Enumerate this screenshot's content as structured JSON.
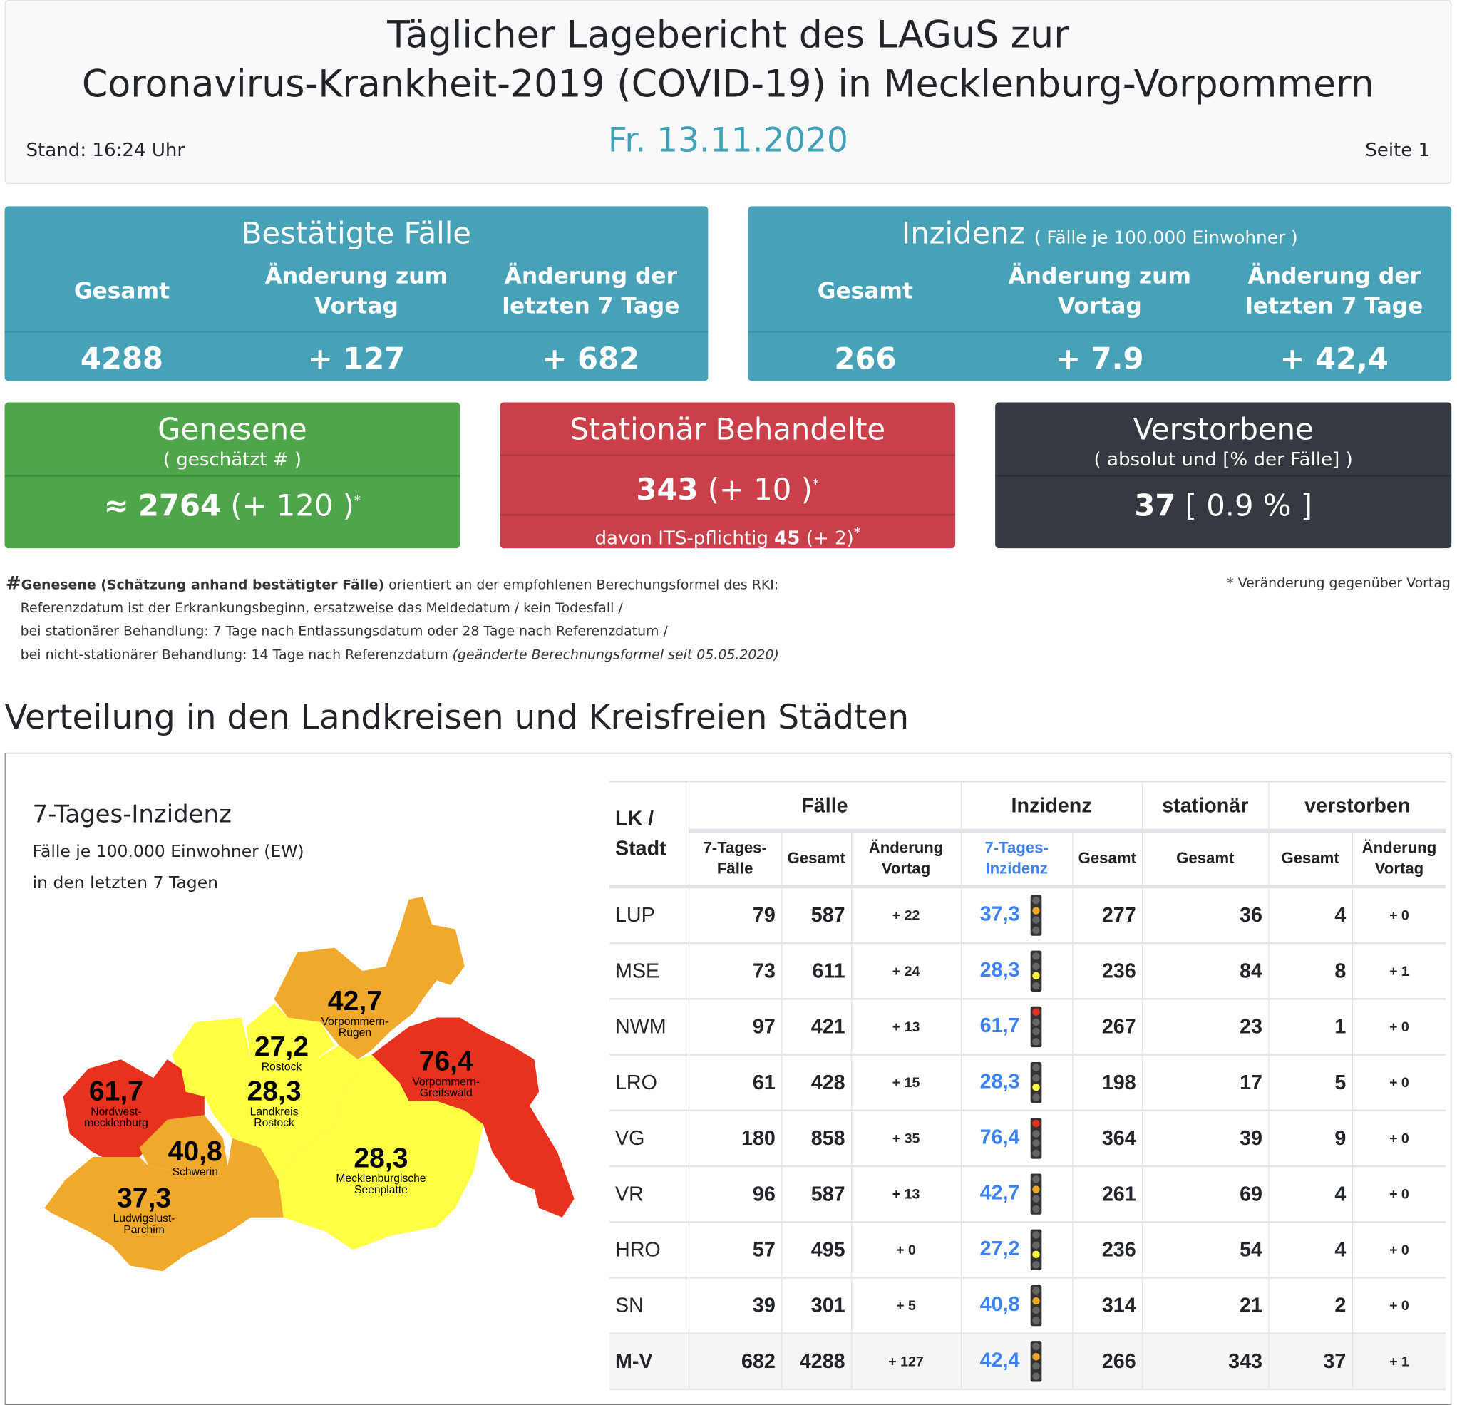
{
  "header": {
    "title_line1": "Täglicher Lagebericht des LAGuS zur",
    "title_line2": "Coronavirus-Krankheit-2019 (COVID-19) in Mecklenburg-Vorpommern",
    "date": "Fr. 13.11.2020",
    "stand": "Stand: 16:24 Uhr",
    "page": "Seite 1"
  },
  "confirmed": {
    "title": "Bestätigte Fälle",
    "h1": "Gesamt",
    "h2": "Änderung zum Vortag",
    "h3": "Änderung der letzten 7 Tage",
    "v1": "4288",
    "v2": "+ 127",
    "v3": "+ 682"
  },
  "incidence": {
    "title": "Inzidenz",
    "subtitle": "( Fälle je 100.000 Einwohner )",
    "h1": "Gesamt",
    "h2": "Änderung zum Vortag",
    "h3": "Änderung der letzten 7 Tage",
    "v1": "266",
    "v2": "+ 7.9",
    "v3": "+ 42,4"
  },
  "recovered": {
    "title": "Genesene",
    "subtitle": "( geschätzt # )",
    "approx": "≈",
    "value": "2764",
    "change": "(+ 120 )",
    "star": "*"
  },
  "hospital": {
    "title": "Stationär Behandelte",
    "value": "343",
    "change": "(+ 10 )",
    "star": "*",
    "its_label": "davon ITS-pflichtig",
    "its_value": "45",
    "its_change": "(+ 2)"
  },
  "deaths": {
    "title": "Verstorbene",
    "subtitle": "( absolut und [% der Fälle] )",
    "value": "37",
    "pct": "[ 0.9 % ]"
  },
  "notes": {
    "hash": "#",
    "bold": "Genesene (Schätzung anhand bestätigter Fälle)",
    "line1": " orientiert an der empfohlenen Berechungsformel des RKI:",
    "line2": "Referenzdatum ist der Erkrankungsbeginn, ersatzweise das Meldedatum / kein Todesfall /",
    "line3": "bei stationärer Behandlung: 7 Tage nach Entlassungsdatum oder 28 Tage nach Referenzdatum /",
    "line4": "bei nicht-stationärer Behandlung: 14 Tage nach Referenzdatum ",
    "line4_italic": "(geänderte Berechnungsformel seit 05.05.2020)",
    "star_note": "* Veränderung gegenüber Vortag"
  },
  "section_title": "Verteilung in den Landkreisen und Kreisfreien Städten",
  "map": {
    "title": "7-Tages-Inzidenz",
    "sub1": "Fälle je 100.000 Einwohner (EW)",
    "sub2": "in den letzten 7 Tagen",
    "regions": [
      {
        "value": "42,7",
        "name": "Vorpommern-Rügen",
        "color": "#f0a92b"
      },
      {
        "value": "27,2",
        "name": "Rostock",
        "color": "#ffff44"
      },
      {
        "value": "28,3",
        "name": "Landkreis Rostock",
        "color": "#ffff44"
      },
      {
        "value": "76,4",
        "name": "Vorpommern-Greifswald",
        "color": "#e8321e"
      },
      {
        "value": "61,7",
        "name": "Nordwest-mecklenburg",
        "color": "#e8321e"
      },
      {
        "value": "40,8",
        "name": "Schwerin",
        "color": "#f0a92b"
      },
      {
        "value": "28,3",
        "name": "Mecklenburgische Seenplatte",
        "color": "#ffff44"
      },
      {
        "value": "37,3",
        "name": "Ludwigslust-Parchim",
        "color": "#f0a92b"
      }
    ]
  },
  "table": {
    "groups": [
      "LK / Stadt",
      "Fälle",
      "Inzidenz",
      "stationär",
      "verstorben"
    ],
    "subs": [
      "7-Tages-Fälle",
      "Gesamt",
      "Änderung Vortag",
      "7-Tages-Inzidenz",
      "Gesamt",
      "Gesamt",
      "Gesamt",
      "Änderung Vortag"
    ],
    "rows": [
      {
        "lk": "LUP",
        "f7": "79",
        "fg": "587",
        "fc": "+ 22",
        "i7": "37,3",
        "light": 1,
        "ig": "277",
        "st": "36",
        "vg": "4",
        "vc": "+ 0"
      },
      {
        "lk": "MSE",
        "f7": "73",
        "fg": "611",
        "fc": "+ 24",
        "i7": "28,3",
        "light": 2,
        "ig": "236",
        "st": "84",
        "vg": "8",
        "vc": "+ 1"
      },
      {
        "lk": "NWM",
        "f7": "97",
        "fg": "421",
        "fc": "+ 13",
        "i7": "61,7",
        "light": 0,
        "ig": "267",
        "st": "23",
        "vg": "1",
        "vc": "+ 0"
      },
      {
        "lk": "LRO",
        "f7": "61",
        "fg": "428",
        "fc": "+ 15",
        "i7": "28,3",
        "light": 2,
        "ig": "198",
        "st": "17",
        "vg": "5",
        "vc": "+ 0"
      },
      {
        "lk": "VG",
        "f7": "180",
        "fg": "858",
        "fc": "+ 35",
        "i7": "76,4",
        "light": 0,
        "ig": "364",
        "st": "39",
        "vg": "9",
        "vc": "+ 0"
      },
      {
        "lk": "VR",
        "f7": "96",
        "fg": "587",
        "fc": "+ 13",
        "i7": "42,7",
        "light": 1,
        "ig": "261",
        "st": "69",
        "vg": "4",
        "vc": "+ 0"
      },
      {
        "lk": "HRO",
        "f7": "57",
        "fg": "495",
        "fc": "+ 0",
        "i7": "27,2",
        "light": 2,
        "ig": "236",
        "st": "54",
        "vg": "4",
        "vc": "+ 0"
      },
      {
        "lk": "SN",
        "f7": "39",
        "fg": "301",
        "fc": "+ 5",
        "i7": "40,8",
        "light": 1,
        "ig": "314",
        "st": "21",
        "vg": "2",
        "vc": "+ 0"
      },
      {
        "lk": "M-V",
        "f7": "682",
        "fg": "4288",
        "fc": "+ 127",
        "i7": "42,4",
        "light": 1,
        "ig": "266",
        "st": "343",
        "vg": "37",
        "vc": "+ 1"
      }
    ]
  },
  "colors": {
    "blue": "#47a2b8",
    "green": "#4ea54a",
    "red": "#c9404a",
    "dark": "#343a40",
    "link": "#3b82f0"
  }
}
